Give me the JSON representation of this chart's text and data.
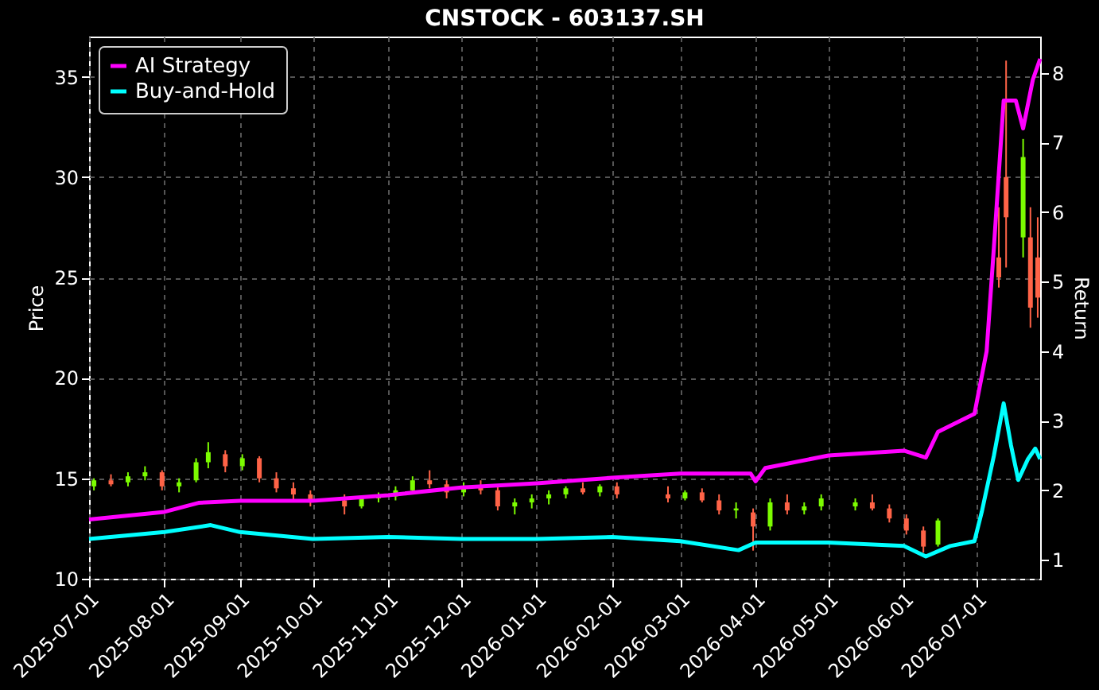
{
  "chart_data": {
    "type": "candlestick",
    "title": "CNSTOCK - 603137.SH",
    "ylabel": "Price",
    "y2label": "Return",
    "xlim": [
      "2025-07-01",
      "2026-07-27"
    ],
    "xticks": [
      "2025-07-01",
      "2025-08-01",
      "2025-09-01",
      "2025-10-01",
      "2025-11-01",
      "2025-12-01",
      "2026-01-01",
      "2026-02-01",
      "2026-03-01",
      "2026-04-01",
      "2026-05-01",
      "2026-06-01",
      "2026-07-01"
    ],
    "ylim": [
      10,
      37
    ],
    "yticks": [
      10,
      15,
      20,
      25,
      30,
      35
    ],
    "y2lim": [
      0.73,
      8.52
    ],
    "y2ticks": [
      1,
      2,
      3,
      4,
      5,
      6,
      7,
      8
    ],
    "grid": true,
    "legend": "top left",
    "line_style": "solid",
    "series": [
      {
        "x": [
          "2025-07-03",
          "2025-07-10",
          "2025-07-17",
          "2025-07-24",
          "2025-07-31",
          "2025-08-07",
          "2025-08-14",
          "2025-08-19",
          "2025-08-26",
          "2025-09-02",
          "2025-09-09",
          "2025-09-16",
          "2025-09-23",
          "2025-09-30",
          "2025-10-14",
          "2025-10-21",
          "2025-10-28",
          "2025-11-04",
          "2025-11-11",
          "2025-11-18",
          "2025-11-25",
          "2025-12-02",
          "2025-12-09",
          "2025-12-16",
          "2025-12-23",
          "2025-12-30",
          "2026-01-06",
          "2026-01-13",
          "2026-01-20",
          "2026-01-27",
          "2026-02-03",
          "2026-02-24",
          "2026-03-03",
          "2026-03-10",
          "2026-03-17",
          "2026-03-24",
          "2026-03-31",
          "2026-04-07",
          "2026-04-14",
          "2026-04-21",
          "2026-04-28",
          "2026-05-12",
          "2026-05-19",
          "2026-05-26",
          "2026-06-02",
          "2026-06-09",
          "2026-06-15",
          "2026-07-10",
          "2026-07-13",
          "2026-07-20",
          "2026-07-23",
          "2026-07-26"
        ],
        "ohlc": [
          [
            14.6,
            15.0,
            14.4,
            14.9
          ],
          [
            14.9,
            15.2,
            14.6,
            14.7
          ],
          [
            14.8,
            15.3,
            14.6,
            15.1
          ],
          [
            15.1,
            15.6,
            14.9,
            15.3
          ],
          [
            15.3,
            15.4,
            14.4,
            14.6
          ],
          [
            14.6,
            15.0,
            14.3,
            14.8
          ],
          [
            14.9,
            16.0,
            14.8,
            15.8
          ],
          [
            15.8,
            16.8,
            15.5,
            16.3
          ],
          [
            16.2,
            16.4,
            15.3,
            15.6
          ],
          [
            15.6,
            16.2,
            15.4,
            16.0
          ],
          [
            16.0,
            16.1,
            14.8,
            15.0
          ],
          [
            15.0,
            15.3,
            14.3,
            14.5
          ],
          [
            14.5,
            14.8,
            13.9,
            14.2
          ],
          [
            14.2,
            14.4,
            13.6,
            13.9
          ],
          [
            13.9,
            14.2,
            13.2,
            13.6
          ],
          [
            13.6,
            14.1,
            13.5,
            14.0
          ],
          [
            14.0,
            14.3,
            13.8,
            14.1
          ],
          [
            14.1,
            14.6,
            13.9,
            14.4
          ],
          [
            14.4,
            15.1,
            14.3,
            14.9
          ],
          [
            14.9,
            15.4,
            14.5,
            14.7
          ],
          [
            14.7,
            14.9,
            14.0,
            14.3
          ],
          [
            14.3,
            14.8,
            14.1,
            14.6
          ],
          [
            14.6,
            14.9,
            14.2,
            14.4
          ],
          [
            14.4,
            14.6,
            13.4,
            13.6
          ],
          [
            13.6,
            14.0,
            13.2,
            13.8
          ],
          [
            13.8,
            14.2,
            13.5,
            14.0
          ],
          [
            14.0,
            14.4,
            13.7,
            14.2
          ],
          [
            14.2,
            14.6,
            14.0,
            14.5
          ],
          [
            14.5,
            14.8,
            14.2,
            14.3
          ],
          [
            14.3,
            14.7,
            14.1,
            14.6
          ],
          [
            14.6,
            14.8,
            14.0,
            14.2
          ],
          [
            14.2,
            14.6,
            13.8,
            14.0
          ],
          [
            14.0,
            14.4,
            13.9,
            14.3
          ],
          [
            14.3,
            14.5,
            13.8,
            13.9
          ],
          [
            13.9,
            14.2,
            13.2,
            13.4
          ],
          [
            13.4,
            13.8,
            13.0,
            13.5
          ],
          [
            13.3,
            13.5,
            11.4,
            12.6
          ],
          [
            12.6,
            14.0,
            12.4,
            13.8
          ],
          [
            13.8,
            14.2,
            13.2,
            13.4
          ],
          [
            13.4,
            13.8,
            13.2,
            13.6
          ],
          [
            13.6,
            14.2,
            13.4,
            14.0
          ],
          [
            13.6,
            14.0,
            13.4,
            13.8
          ],
          [
            13.8,
            14.2,
            13.4,
            13.5
          ],
          [
            13.5,
            13.7,
            12.8,
            13.0
          ],
          [
            13.0,
            13.2,
            12.2,
            12.4
          ],
          [
            12.4,
            12.6,
            11.3,
            11.6
          ],
          [
            11.7,
            13.0,
            11.6,
            12.9
          ],
          [
            26.0,
            28.5,
            24.5,
            25.0
          ],
          [
            30.0,
            35.8,
            25.5,
            28.0
          ],
          [
            27.0,
            31.9,
            26.0,
            31.0
          ],
          [
            27.0,
            28.5,
            22.5,
            23.5
          ],
          [
            26.0,
            28.0,
            23.0,
            24.0
          ]
        ]
      },
      {
        "type": "line",
        "name": "AI Strategy",
        "color": "#ff00ff",
        "axis": "y2",
        "x": [
          "2025-07-01",
          "2025-08-01",
          "2025-08-15",
          "2025-09-01",
          "2025-10-01",
          "2025-11-01",
          "2025-12-01",
          "2026-01-01",
          "2026-02-01",
          "2026-03-01",
          "2026-03-30",
          "2026-04-01",
          "2026-04-05",
          "2026-05-01",
          "2026-06-01",
          "2026-06-10",
          "2026-06-15",
          "2026-06-30",
          "2026-07-05",
          "2026-07-08",
          "2026-07-12",
          "2026-07-17",
          "2026-07-20",
          "2026-07-24",
          "2026-07-27"
        ],
        "values": [
          1.58,
          1.69,
          1.82,
          1.85,
          1.85,
          1.93,
          2.04,
          2.1,
          2.18,
          2.24,
          2.24,
          2.13,
          2.32,
          2.5,
          2.57,
          2.47,
          2.84,
          3.1,
          4.0,
          5.5,
          7.6,
          7.6,
          7.2,
          7.9,
          8.2
        ]
      },
      {
        "type": "line",
        "name": "Buy-and-Hold",
        "color": "#00ffff",
        "axis": "y2",
        "x": [
          "2025-07-01",
          "2025-08-01",
          "2025-08-20",
          "2025-09-01",
          "2025-10-01",
          "2025-11-01",
          "2025-12-01",
          "2026-01-01",
          "2026-02-01",
          "2026-03-01",
          "2026-03-25",
          "2026-04-01",
          "2026-05-01",
          "2026-06-01",
          "2026-06-10",
          "2026-06-20",
          "2026-06-30",
          "2026-07-03",
          "2026-07-08",
          "2026-07-12",
          "2026-07-15",
          "2026-07-18",
          "2026-07-22",
          "2026-07-25",
          "2026-07-27"
        ],
        "values": [
          1.3,
          1.4,
          1.5,
          1.4,
          1.3,
          1.33,
          1.3,
          1.3,
          1.33,
          1.27,
          1.14,
          1.25,
          1.25,
          1.2,
          1.05,
          1.2,
          1.27,
          1.69,
          2.5,
          3.25,
          2.65,
          2.15,
          2.45,
          2.6,
          2.45
        ]
      }
    ]
  }
}
